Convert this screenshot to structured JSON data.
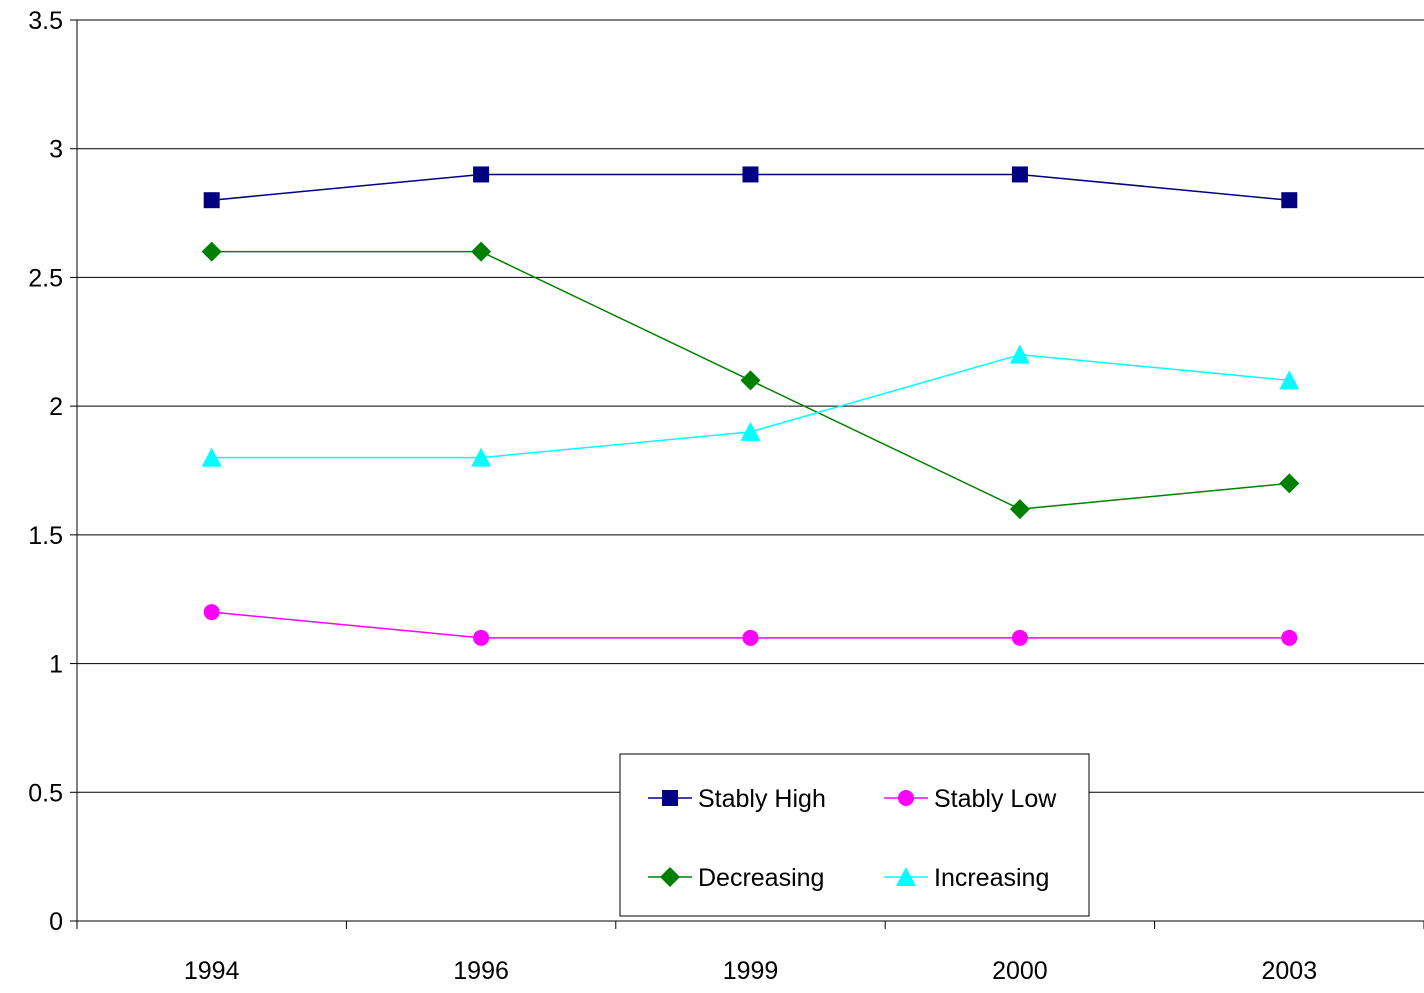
{
  "chart_data": {
    "type": "line",
    "categories": [
      "1994",
      "1996",
      "1999",
      "2000",
      "2003"
    ],
    "y_ticks": [
      "0",
      "0.5",
      "1",
      "1.5",
      "2",
      "2.5",
      "3",
      "3.5"
    ],
    "ylim": [
      0,
      3.5
    ],
    "grid": "horizontal",
    "legend_position": "bottom-center",
    "series": [
      {
        "name": "Stably High",
        "values": [
          2.8,
          2.9,
          2.9,
          2.9,
          2.8
        ],
        "color": "#000080",
        "marker": "square"
      },
      {
        "name": "Stably Low",
        "values": [
          1.2,
          1.1,
          1.1,
          1.1,
          1.1
        ],
        "color": "#FF00FF",
        "marker": "circle"
      },
      {
        "name": "Decreasing",
        "values": [
          2.6,
          2.6,
          2.1,
          1.6,
          1.7
        ],
        "color": "#008000",
        "marker": "diamond"
      },
      {
        "name": "Increasing",
        "values": [
          1.8,
          1.8,
          1.9,
          2.2,
          2.1
        ],
        "color": "#00FFFF",
        "marker": "triangle"
      }
    ]
  }
}
